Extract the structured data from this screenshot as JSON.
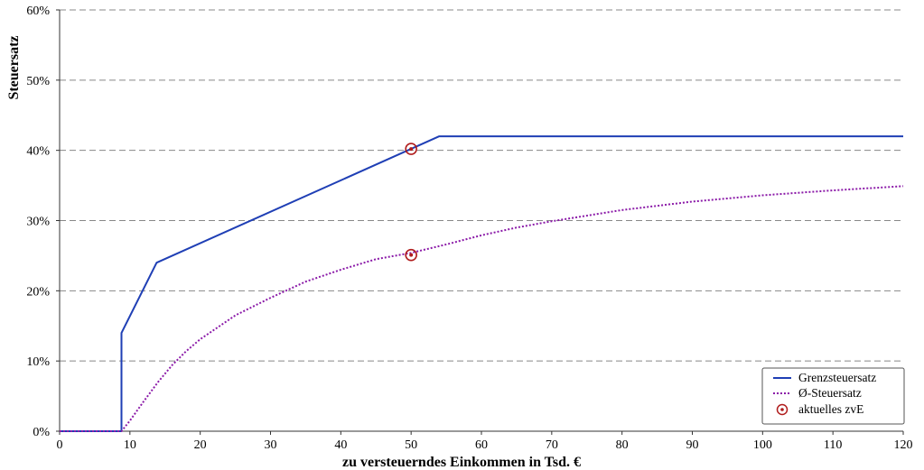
{
  "chart_data": {
    "type": "line",
    "xlabel": "zu versteuerndes Einkommen in Tsd. €",
    "ylabel": "Steuersatz",
    "xlim": [
      0,
      120
    ],
    "ylim": [
      0,
      60
    ],
    "x_ticks": [
      "0",
      "10",
      "20",
      "30",
      "40",
      "50",
      "60",
      "70",
      "80",
      "90",
      "100",
      "110",
      "120"
    ],
    "y_ticks": [
      "0%",
      "10%",
      "20%",
      "30%",
      "40%",
      "50%",
      "60%"
    ],
    "grid": "horizontal-dashed",
    "legend_position": "bottom-right",
    "series": [
      {
        "name": "Grenzsteuersatz",
        "style": "solid",
        "color": "#1f3fb5",
        "x": [
          0,
          8.8,
          8.8,
          13.8,
          54,
          120
        ],
        "y": [
          0,
          0,
          14,
          24,
          42,
          42
        ]
      },
      {
        "name": "Ø-Steuersatz",
        "style": "dotted",
        "color": "#8b1aa8",
        "x": [
          0,
          8.8,
          10,
          12,
          14,
          16,
          18,
          20,
          25,
          30,
          35,
          40,
          45,
          50,
          55,
          60,
          65,
          70,
          80,
          90,
          100,
          110,
          120
        ],
        "y": [
          0,
          0,
          1.5,
          4.3,
          7.0,
          9.4,
          11.4,
          13.1,
          16.5,
          19.0,
          21.3,
          23.0,
          24.5,
          25.4,
          26.6,
          27.9,
          29.0,
          29.9,
          31.5,
          32.7,
          33.6,
          34.3,
          34.9
        ]
      }
    ],
    "markers": {
      "name": "aktuelles zvE",
      "color": "#b01c1c",
      "points": [
        {
          "x": 50,
          "y": 40.2
        },
        {
          "x": 50,
          "y": 25.1
        }
      ]
    }
  }
}
